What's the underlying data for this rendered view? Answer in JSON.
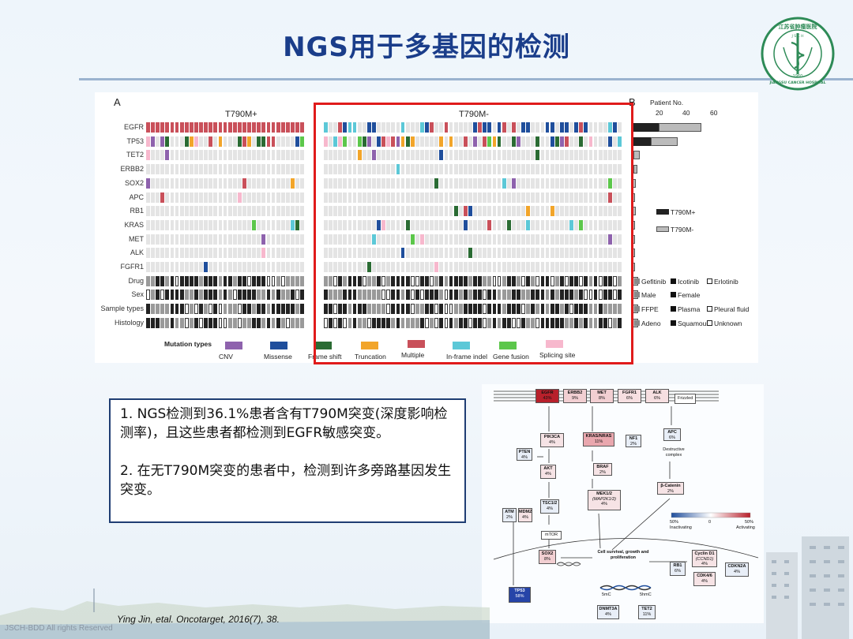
{
  "slide": {
    "title": "NGS用于多基因的检测",
    "footer": "JSCH-BDD    All rights Reserved",
    "citation": "Ying Jin, etal. Oncotarget, 2016(7), 38."
  },
  "logo": {
    "name": "hospital-logo-icon",
    "top_text": "江苏省肿瘤医院",
    "mid_text": "J S C H",
    "bottom_text": "JIANGSU CANCER HOSPITAL",
    "year": "1960",
    "color": "#2e8b57"
  },
  "figure_a": {
    "panel_a": "A",
    "panel_b": "B",
    "group_left": "T790M+",
    "group_right": "T790M-",
    "patient_axis_label": "Patient No.",
    "patient_ticks": [
      "20",
      "40",
      "60"
    ],
    "genes": [
      "EGFR",
      "TP53",
      "TET2",
      "ERBB2",
      "SOX2",
      "APC",
      "RB1",
      "KRAS",
      "MET",
      "ALK",
      "FGFR1",
      "Drug",
      "Sex",
      "Sample types",
      "Histology"
    ],
    "gene_counts_t790m_pos": [
      20,
      14,
      1,
      1,
      0,
      0,
      0,
      0,
      0,
      0,
      0
    ],
    "gene_counts_t790m_neg": [
      32,
      20,
      5,
      3,
      3,
      2,
      3,
      2,
      1,
      1,
      1
    ],
    "legend_bars": [
      "T790M+",
      "T790M-"
    ],
    "drug_legend": [
      "Gefitinib",
      "Icotinib",
      "Erlotinib"
    ],
    "sex_legend": [
      "Male",
      "Female"
    ],
    "sample_legend": [
      "FFPE",
      "Plasma",
      "Pleural fluid"
    ],
    "histology_legend": [
      "Adeno",
      "Squamous",
      "Unknown"
    ],
    "mutation_types_title": "Mutation types",
    "mutation_types": [
      {
        "label": "CNV",
        "color": "#8e62ad"
      },
      {
        "label": "Missense",
        "color": "#1f4e9c"
      },
      {
        "label": "Frame shift",
        "color": "#2a6b33"
      },
      {
        "label": "Truncation",
        "color": "#f2a52a"
      },
      {
        "label": "Multiple",
        "color": "#c9505a"
      },
      {
        "label": "In-frame indel",
        "color": "#5cc8d7"
      },
      {
        "label": "Gene fusion",
        "color": "#5cc74b"
      },
      {
        "label": "Splicing site",
        "color": "#f7b8cd"
      }
    ]
  },
  "findings": {
    "point1": "1. NGS检测到36.1%患者含有T790M突变(深度影响检测率)，且这些患者都检测到EGFR敏感突变。",
    "point2": "2. 在无T790M突变的患者中，检测到许多旁路基因发生突变。"
  },
  "figure_b": {
    "receptors": [
      {
        "gene": "EGFR",
        "pct": "43%"
      },
      {
        "gene": "ERBB2",
        "pct": "9%"
      },
      {
        "gene": "MET",
        "pct": "8%"
      },
      {
        "gene": "FGFR1",
        "pct": "6%"
      },
      {
        "gene": "ALK",
        "pct": "6%"
      }
    ],
    "frizzled": "Frizzled",
    "pik3ca": {
      "gene": "PIK3CA",
      "pct": "4%"
    },
    "kras": {
      "gene": "KRAS/NRAS",
      "pct": "11%"
    },
    "nf1": {
      "gene": "NF1",
      "pct": "2%"
    },
    "apc": {
      "gene": "APC",
      "pct": "6%"
    },
    "destructive": "Destructive complex",
    "pten": {
      "gene": "PTEN",
      "pct": "4%"
    },
    "akt": {
      "gene": "AKT",
      "pct": "4%"
    },
    "braf": {
      "gene": "BRAF",
      "pct": "2%"
    },
    "beta_catenin": {
      "gene": "β-Catenin",
      "pct": "2%"
    },
    "tsc": {
      "gene": "TSC1/2",
      "pct": "4%"
    },
    "mek": {
      "gene": "MEK1/2",
      "sub": "(MAP2K1/2)",
      "pct": "4%"
    },
    "atm": {
      "gene": "ATM",
      "pct": "2%"
    },
    "mdm2": {
      "gene": "MDM2",
      "pct": "4%"
    },
    "mtor": "mTOR",
    "scale_left": "50%",
    "scale_mid": "0",
    "scale_right": "50%",
    "inactivating": "Inactivating",
    "activating": "Activating",
    "sox2": {
      "gene": "SOX2",
      "pct": "8%"
    },
    "cell_survival": "Cell survival, growth and proliferation",
    "cyclin": {
      "gene": "Cyclin D1",
      "sub": "(CCND1)",
      "pct": "4%"
    },
    "rb1": {
      "gene": "RB1",
      "pct": "6%"
    },
    "cdkn2a": {
      "gene": "CDKN2A",
      "pct": "4%"
    },
    "cdk": {
      "gene": "CDK4/6",
      "pct": "4%"
    },
    "tp53": {
      "gene": "TP53",
      "pct": "58%"
    },
    "fivemc": "5mC",
    "fivehmc": "5hmC",
    "dnmt3a": {
      "gene": "DNMT3A",
      "pct": "4%"
    },
    "tet2": {
      "gene": "TET2",
      "pct": "11%"
    }
  }
}
